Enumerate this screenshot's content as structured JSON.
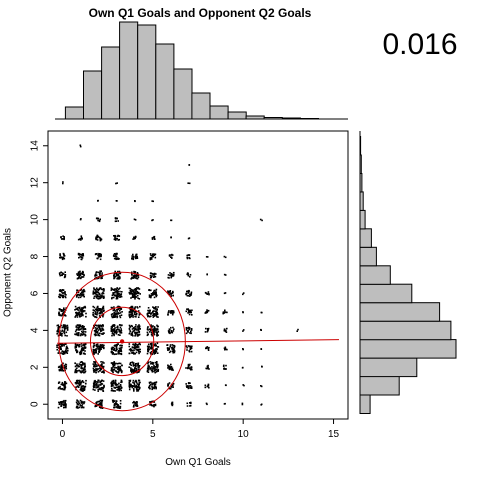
{
  "chart_data": {
    "type": "scatter",
    "title": "Own Q1 Goals and Opponent Q2 Goals",
    "xlabel": "Own Q1 Goals",
    "ylabel": "Opponent Q2 Goals",
    "correlation_text": "0.016",
    "xlim": [
      -0.8,
      15.8
    ],
    "ylim": [
      -0.8,
      14.8
    ],
    "x_ticks": [
      0,
      5,
      10,
      15
    ],
    "y_ticks": [
      0,
      2,
      4,
      6,
      8,
      10,
      12,
      14
    ],
    "mean_point": {
      "x": 3.3,
      "y": 3.4
    },
    "ellipses": [
      {
        "name": "inner",
        "rx": 1.75,
        "ry": 1.85
      },
      {
        "name": "outer",
        "rx": 3.5,
        "ry": 3.75
      }
    ],
    "regression_line": {
      "x": [
        -0.3,
        15.3
      ],
      "y": [
        3.3,
        3.5
      ]
    },
    "x_histogram": {
      "x": [
        0,
        1,
        2,
        3,
        4,
        5,
        6,
        7,
        8,
        9,
        10,
        11,
        12,
        13
      ],
      "counts": [
        12,
        48,
        72,
        97,
        94,
        75,
        50,
        26,
        13,
        7,
        3,
        1.5,
        1,
        0.5
      ]
    },
    "y_histogram": {
      "y": [
        0,
        1,
        2,
        3,
        4,
        5,
        6,
        7,
        8,
        9,
        10,
        11,
        12,
        13,
        14
      ],
      "counts": [
        8,
        31,
        45,
        76,
        72,
        63,
        41,
        24,
        13,
        9,
        4,
        2.5,
        1.5,
        1,
        0.5
      ]
    },
    "point_grid": [
      [
        0,
        0,
        "l"
      ],
      [
        1,
        0,
        "l"
      ],
      [
        2,
        0,
        "l"
      ],
      [
        3,
        0,
        "l"
      ],
      [
        4,
        0,
        "m"
      ],
      [
        5,
        0,
        "m"
      ],
      [
        6,
        0,
        "s"
      ],
      [
        7,
        0,
        "s"
      ],
      [
        8,
        0,
        "t"
      ],
      [
        9,
        0,
        "t"
      ],
      [
        10,
        0,
        "t"
      ],
      [
        11,
        0,
        "t"
      ],
      [
        0,
        1,
        "l"
      ],
      [
        1,
        1,
        "L"
      ],
      [
        2,
        1,
        "L"
      ],
      [
        3,
        1,
        "L"
      ],
      [
        4,
        1,
        "L"
      ],
      [
        5,
        1,
        "l"
      ],
      [
        6,
        1,
        "m"
      ],
      [
        7,
        1,
        "m"
      ],
      [
        8,
        1,
        "s"
      ],
      [
        9,
        1,
        "t"
      ],
      [
        10,
        1,
        "t"
      ],
      [
        11,
        1,
        "t"
      ],
      [
        0,
        2,
        "l"
      ],
      [
        1,
        2,
        "L"
      ],
      [
        2,
        2,
        "L"
      ],
      [
        3,
        2,
        "L"
      ],
      [
        4,
        2,
        "L"
      ],
      [
        5,
        2,
        "L"
      ],
      [
        6,
        2,
        "m"
      ],
      [
        7,
        2,
        "m"
      ],
      [
        8,
        2,
        "s"
      ],
      [
        9,
        2,
        "s"
      ],
      [
        10,
        2,
        "t"
      ],
      [
        11,
        2,
        "t"
      ],
      [
        0,
        3,
        "L"
      ],
      [
        1,
        3,
        "L"
      ],
      [
        2,
        3,
        "L"
      ],
      [
        3,
        3,
        "L"
      ],
      [
        4,
        3,
        "L"
      ],
      [
        5,
        3,
        "L"
      ],
      [
        6,
        3,
        "l"
      ],
      [
        7,
        3,
        "m"
      ],
      [
        8,
        3,
        "s"
      ],
      [
        9,
        3,
        "s"
      ],
      [
        10,
        3,
        "t"
      ],
      [
        11,
        3,
        "t"
      ],
      [
        0,
        4,
        "L"
      ],
      [
        1,
        4,
        "L"
      ],
      [
        2,
        4,
        "L"
      ],
      [
        3,
        4,
        "L"
      ],
      [
        4,
        4,
        "L"
      ],
      [
        5,
        4,
        "L"
      ],
      [
        6,
        4,
        "m"
      ],
      [
        7,
        4,
        "m"
      ],
      [
        8,
        4,
        "s"
      ],
      [
        9,
        4,
        "s"
      ],
      [
        10,
        4,
        "t"
      ],
      [
        11,
        4,
        "t"
      ],
      [
        13,
        4,
        "t"
      ],
      [
        0,
        5,
        "l"
      ],
      [
        1,
        5,
        "L"
      ],
      [
        2,
        5,
        "L"
      ],
      [
        3,
        5,
        "L"
      ],
      [
        4,
        5,
        "L"
      ],
      [
        5,
        5,
        "L"
      ],
      [
        6,
        5,
        "m"
      ],
      [
        7,
        5,
        "m"
      ],
      [
        8,
        5,
        "s"
      ],
      [
        9,
        5,
        "s"
      ],
      [
        10,
        5,
        "t"
      ],
      [
        11,
        5,
        "t"
      ],
      [
        0,
        6,
        "l"
      ],
      [
        1,
        6,
        "l"
      ],
      [
        2,
        6,
        "L"
      ],
      [
        3,
        6,
        "L"
      ],
      [
        4,
        6,
        "L"
      ],
      [
        5,
        6,
        "l"
      ],
      [
        6,
        6,
        "m"
      ],
      [
        7,
        6,
        "m"
      ],
      [
        8,
        6,
        "s"
      ],
      [
        9,
        6,
        "t"
      ],
      [
        10,
        6,
        "t"
      ],
      [
        0,
        7,
        "m"
      ],
      [
        1,
        7,
        "l"
      ],
      [
        2,
        7,
        "l"
      ],
      [
        3,
        7,
        "l"
      ],
      [
        4,
        7,
        "l"
      ],
      [
        5,
        7,
        "m"
      ],
      [
        6,
        7,
        "m"
      ],
      [
        7,
        7,
        "s"
      ],
      [
        8,
        7,
        "t"
      ],
      [
        9,
        7,
        "t"
      ],
      [
        0,
        8,
        "m"
      ],
      [
        1,
        8,
        "m"
      ],
      [
        2,
        8,
        "m"
      ],
      [
        3,
        8,
        "m"
      ],
      [
        4,
        8,
        "m"
      ],
      [
        5,
        8,
        "m"
      ],
      [
        6,
        8,
        "s"
      ],
      [
        7,
        8,
        "s"
      ],
      [
        8,
        8,
        "t"
      ],
      [
        9,
        8,
        "t"
      ],
      [
        0,
        9,
        "s"
      ],
      [
        1,
        9,
        "s"
      ],
      [
        2,
        9,
        "m"
      ],
      [
        3,
        9,
        "m"
      ],
      [
        4,
        9,
        "s"
      ],
      [
        5,
        9,
        "s"
      ],
      [
        6,
        9,
        "t"
      ],
      [
        7,
        9,
        "t"
      ],
      [
        1,
        10,
        "t"
      ],
      [
        2,
        10,
        "s"
      ],
      [
        3,
        10,
        "s"
      ],
      [
        4,
        10,
        "t"
      ],
      [
        5,
        10,
        "t"
      ],
      [
        6,
        10,
        "t"
      ],
      [
        11,
        10,
        "t"
      ],
      [
        2,
        11,
        "t"
      ],
      [
        3,
        11,
        "t"
      ],
      [
        4,
        11,
        "t"
      ],
      [
        5,
        11,
        "t"
      ],
      [
        0,
        12,
        "t"
      ],
      [
        3,
        12,
        "t"
      ],
      [
        7,
        12,
        "t"
      ],
      [
        7,
        13,
        "t"
      ],
      [
        1,
        14,
        "t"
      ]
    ]
  }
}
